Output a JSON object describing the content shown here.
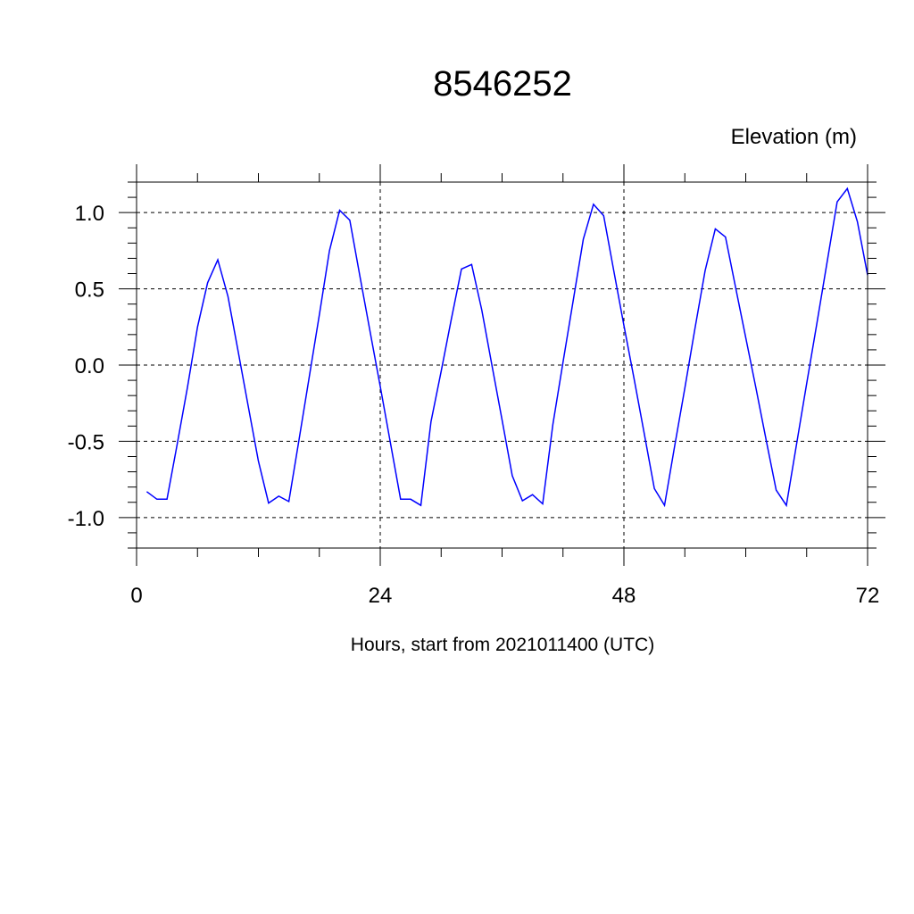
{
  "chart_data": {
    "type": "line",
    "title": "8546252",
    "right_label": "Elevation (m)",
    "xlabel": "Hours, start from 2021011400 (UTC)",
    "ylabel": "",
    "xlim": [
      0,
      72
    ],
    "ylim": [
      -1.2,
      1.2
    ],
    "x_ticks": [
      0,
      24,
      48,
      72
    ],
    "x_tick_labels": [
      "0",
      "24",
      "48",
      "72"
    ],
    "x_minor_step": 6,
    "y_ticks": [
      1.0,
      0.5,
      0.0,
      -0.5,
      -1.0
    ],
    "y_tick_labels": [
      "1.0",
      "0.5",
      "0.0",
      "-0.5",
      "-1.0"
    ],
    "y_minor_step": 0.1,
    "grid": true,
    "line_color": "#0000ff",
    "series": [
      {
        "x": [
          1,
          2,
          3,
          4,
          5,
          6,
          7,
          8,
          9,
          10,
          11,
          12,
          13,
          14,
          15,
          16,
          17,
          18,
          19,
          20,
          21,
          22,
          23,
          24,
          25,
          26,
          27,
          28,
          29,
          30,
          31,
          32,
          33,
          34,
          35,
          36,
          37,
          38,
          39,
          40,
          41,
          42,
          43,
          44,
          45,
          46,
          47,
          48,
          49,
          50,
          51,
          52,
          53,
          54,
          55,
          56,
          57,
          58,
          59,
          60,
          61,
          62,
          63,
          64,
          65,
          66,
          67,
          68,
          69,
          70,
          71,
          72
        ],
        "y": [
          -0.83,
          -0.88,
          -0.88,
          -0.52,
          -0.15,
          0.25,
          0.54,
          0.69,
          0.45,
          0.09,
          -0.27,
          -0.63,
          -0.905,
          -0.86,
          -0.895,
          -0.49,
          -0.08,
          0.33,
          0.75,
          1.015,
          0.95,
          0.58,
          0.22,
          -0.14,
          -0.51,
          -0.88,
          -0.88,
          -0.92,
          -0.37,
          -0.04,
          0.3,
          0.63,
          0.66,
          0.36,
          0.0,
          -0.36,
          -0.725,
          -0.89,
          -0.85,
          -0.91,
          -0.39,
          0.02,
          0.42,
          0.825,
          1.054,
          0.98,
          0.62,
          0.26,
          -0.09,
          -0.45,
          -0.81,
          -0.92,
          -0.53,
          -0.15,
          0.24,
          0.62,
          0.893,
          0.84,
          0.51,
          0.18,
          -0.15,
          -0.49,
          -0.82,
          -0.92,
          -0.52,
          -0.12,
          0.27,
          0.67,
          1.07,
          1.157,
          0.94,
          0.59
        ]
      }
    ]
  }
}
